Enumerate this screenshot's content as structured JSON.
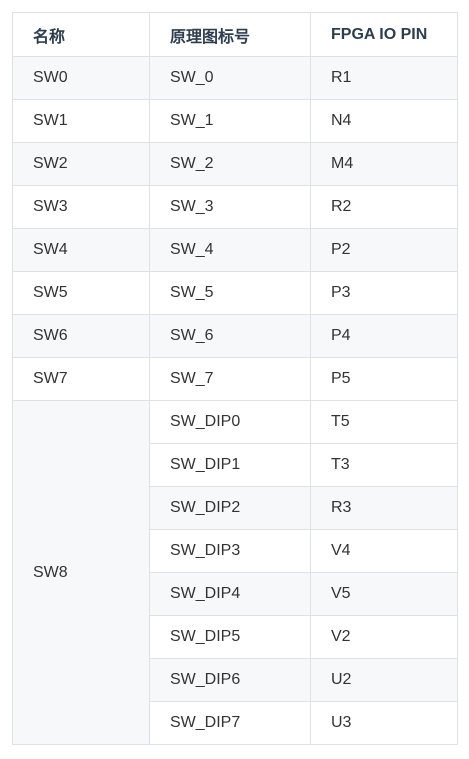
{
  "table": {
    "headers": [
      "名称",
      "原理图标号",
      "FPGA IO PIN"
    ],
    "rows": [
      {
        "name": "SW0",
        "label": "SW_0",
        "pin": "R1",
        "shaded": true
      },
      {
        "name": "SW1",
        "label": "SW_1",
        "pin": "N4",
        "shaded": false
      },
      {
        "name": "SW2",
        "label": "SW_2",
        "pin": "M4",
        "shaded": true
      },
      {
        "name": "SW3",
        "label": "SW_3",
        "pin": "R2",
        "shaded": false
      },
      {
        "name": "SW4",
        "label": "SW_4",
        "pin": "P2",
        "shaded": true
      },
      {
        "name": "SW5",
        "label": "SW_5",
        "pin": "P3",
        "shaded": false
      },
      {
        "name": "SW6",
        "label": "SW_6",
        "pin": "P4",
        "shaded": true
      },
      {
        "name": "SW7",
        "label": "SW_7",
        "pin": "P5",
        "shaded": false
      }
    ],
    "merged_group": {
      "name": "SW8",
      "rows": [
        {
          "label": "SW_DIP0",
          "pin": "T5",
          "shaded": false
        },
        {
          "label": "SW_DIP1",
          "pin": "T3",
          "shaded": false
        },
        {
          "label": "SW_DIP2",
          "pin": "R3",
          "shaded": true
        },
        {
          "label": "SW_DIP3",
          "pin": "V4",
          "shaded": false
        },
        {
          "label": "SW_DIP4",
          "pin": "V5",
          "shaded": true
        },
        {
          "label": "SW_DIP5",
          "pin": "V2",
          "shaded": false
        },
        {
          "label": "SW_DIP6",
          "pin": "U2",
          "shaded": true
        },
        {
          "label": "SW_DIP7",
          "pin": "U3",
          "shaded": false
        }
      ]
    }
  },
  "colors": {
    "border": "#dfe2e5",
    "shade": "#f6f8fa",
    "text": "#333333",
    "header_text": "#2c3e50"
  }
}
